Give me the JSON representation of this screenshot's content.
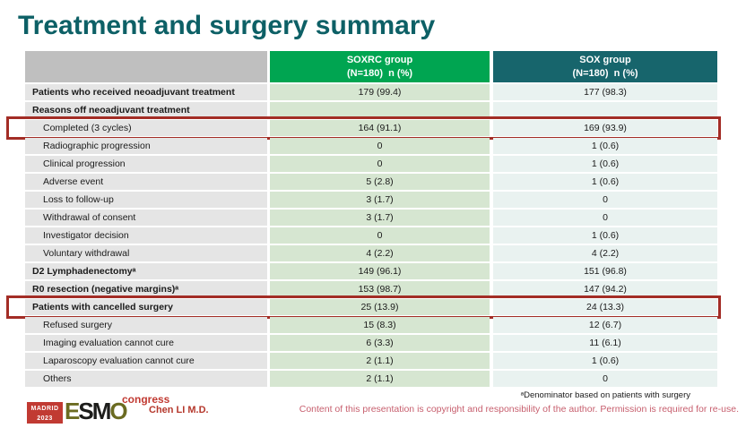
{
  "slide_title": "Treatment and surgery summary",
  "colors": {
    "title": "#0d6066",
    "group1_header_bg": "#00a551",
    "group2_header_bg": "#17656c",
    "label_header_bg": "#bfbfbf",
    "label_cell_bg": "#e5e5e5",
    "group1_cell_bg": "#d6e6d1",
    "group2_cell_bg": "#e9f2f0",
    "highlight_border": "#a32d26",
    "logo_red": "#c13a32",
    "copyright_text": "#c75f6e"
  },
  "table": {
    "header": {
      "group1_line1": "SOXRC group",
      "group1_line2": "(N=180)  n (%)",
      "group2_line1": "SOX group",
      "group2_line2": "(N=180)  n (%)"
    },
    "rows": [
      {
        "label": "Patients who received neoadjuvant treatment",
        "soxrc": "179 (99.4)",
        "sox": "177 (98.3)",
        "bold": true,
        "indent": false,
        "highlight": false
      },
      {
        "label": "Reasons off neoadjuvant treatment",
        "soxrc": "",
        "sox": "",
        "bold": true,
        "indent": false,
        "highlight": false
      },
      {
        "label": "Completed (3 cycles)",
        "soxrc": "164 (91.1)",
        "sox": "169 (93.9)",
        "bold": false,
        "indent": true,
        "highlight": true
      },
      {
        "label": "Radiographic progression",
        "soxrc": "0",
        "sox": "1 (0.6)",
        "bold": false,
        "indent": true,
        "highlight": false
      },
      {
        "label": "Clinical progression",
        "soxrc": "0",
        "sox": "1 (0.6)",
        "bold": false,
        "indent": true,
        "highlight": false
      },
      {
        "label": "Adverse event",
        "soxrc": "5 (2.8)",
        "sox": "1 (0.6)",
        "bold": false,
        "indent": true,
        "highlight": false
      },
      {
        "label": "Loss to follow-up",
        "soxrc": "3 (1.7)",
        "sox": "0",
        "bold": false,
        "indent": true,
        "highlight": false
      },
      {
        "label": "Withdrawal of consent",
        "soxrc": "3 (1.7)",
        "sox": "0",
        "bold": false,
        "indent": true,
        "highlight": false
      },
      {
        "label": "Investigator decision",
        "soxrc": "0",
        "sox": "1 (0.6)",
        "bold": false,
        "indent": true,
        "highlight": false
      },
      {
        "label": "Voluntary withdrawal",
        "soxrc": "4 (2.2)",
        "sox": "4 (2.2)",
        "bold": false,
        "indent": true,
        "highlight": false
      },
      {
        "label": "D2 Lymphadenectomyᵃ",
        "soxrc": "149 (96.1)",
        "sox": "151 (96.8)",
        "bold": true,
        "indent": false,
        "highlight": false
      },
      {
        "label": "R0 resection (negative margins)ᵃ",
        "soxrc": "153 (98.7)",
        "sox": "147 (94.2)",
        "bold": true,
        "indent": false,
        "highlight": false
      },
      {
        "label": "Patients with cancelled surgery",
        "soxrc": "25 (13.9)",
        "sox": "24 (13.3)",
        "bold": true,
        "indent": false,
        "highlight": true
      },
      {
        "label": "Refused surgery",
        "soxrc": "15 (8.3)",
        "sox": "12 (6.7)",
        "bold": false,
        "indent": true,
        "highlight": false
      },
      {
        "label": "Imaging evaluation cannot cure",
        "soxrc": "6 (3.3)",
        "sox": "11 (6.1)",
        "bold": false,
        "indent": true,
        "highlight": false
      },
      {
        "label": "Laparoscopy evaluation cannot cure",
        "soxrc": "2 (1.1)",
        "sox": "1 (0.6)",
        "bold": false,
        "indent": true,
        "highlight": false
      },
      {
        "label": "Others",
        "soxrc": "2 (1.1)",
        "sox": "0",
        "bold": false,
        "indent": true,
        "highlight": false
      }
    ]
  },
  "footer": {
    "logo_city": "MADRID",
    "logo_year": "2023",
    "logo_org_letters": [
      {
        "ch": "E",
        "color": "#6b6b21"
      },
      {
        "ch": "S",
        "color": "#1d1d1b"
      },
      {
        "ch": "M",
        "color": "#1d1d1b"
      },
      {
        "ch": "O",
        "color": "#6b6b21"
      }
    ],
    "logo_event": "congress",
    "presenter": "Chen LI M.D.",
    "footnote": "ᵃDenominator based on patients with surgery",
    "copyright": "Content of this presentation is copyright and responsibility of the author. Permission is required for re-use."
  }
}
